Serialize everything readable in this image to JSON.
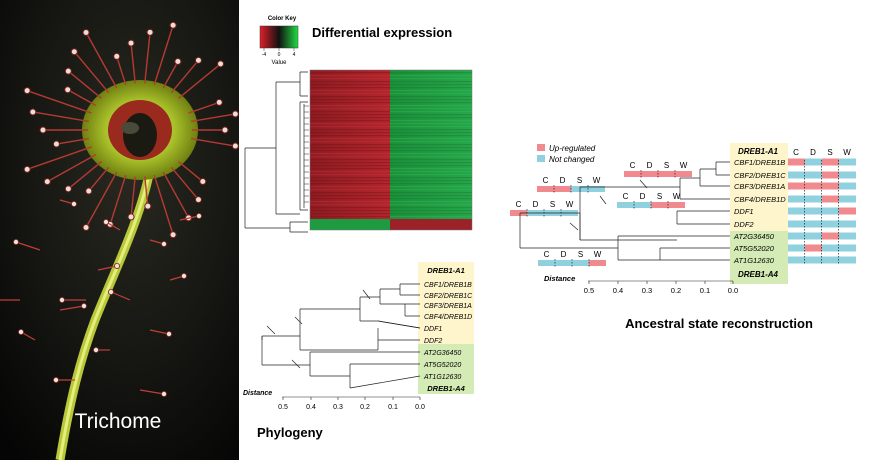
{
  "photo": {
    "caption": "Trichome"
  },
  "color_key": {
    "title": "Color Key",
    "ticks": [
      "-4",
      "0",
      "4"
    ],
    "axis_label": "Value"
  },
  "heatmap": {
    "title": "Differential expression"
  },
  "phylogeny": {
    "title": "Phylogeny",
    "group_a1": "DREB1-A1",
    "group_a4": "DREB1-A4",
    "genes": [
      "CBF1/DREB1B",
      "CBF2/DREB1C",
      "CBF3/DREB1A",
      "CBF4/DREB1D",
      "DDF1",
      "DDF2",
      "AT2G36450",
      "AT5G52020",
      "AT1G12630"
    ],
    "distance_label": "Distance",
    "distance_ticks": [
      "0.5",
      "0.4",
      "0.3",
      "0.2",
      "0.1",
      "0.0"
    ]
  },
  "ancestral": {
    "title": "Ancestral state reconstruction",
    "legend": [
      {
        "label": "Up-regulated",
        "color": "#f08a8e"
      },
      {
        "label": "Not changed",
        "color": "#8fd1de"
      }
    ],
    "columns": [
      "C",
      "D",
      "S",
      "W"
    ],
    "group_a1": "DREB1-A1",
    "group_a4": "DREB1-A4",
    "genes": [
      "CBF1/DREB1B",
      "CBF2/DREB1C",
      "CBF3/DREB1A",
      "CBF4/DREB1D",
      "DDF1",
      "DDF2",
      "AT2G36450",
      "AT5G52020",
      "AT1G12630"
    ],
    "distance_label": "Distance",
    "distance_ticks": [
      "0.5",
      "0.4",
      "0.3",
      "0.2",
      "0.1",
      "0.0"
    ]
  },
  "colors": {
    "up": "#f08a8e",
    "not_changed": "#8fd1de",
    "a1_box": "#fff5cc",
    "a4_box": "#d5ebb6"
  }
}
